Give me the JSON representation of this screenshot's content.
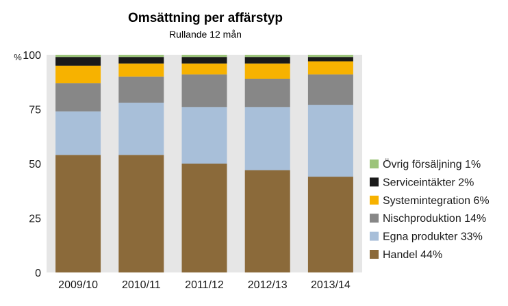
{
  "chart_data": {
    "type": "bar",
    "stacked": true,
    "title": "Omsättning per affärstyp",
    "subtitle": "Rullande 12 mån",
    "ylabel": "%",
    "ylim": [
      0,
      100
    ],
    "yticks": [
      0,
      25,
      50,
      75,
      100
    ],
    "categories": [
      "2009/10",
      "2010/11",
      "2011/12",
      "2012/13",
      "2013/14"
    ],
    "series": [
      {
        "name": "Handel",
        "legend": "Handel 44%",
        "color": "#8b6a3a",
        "values": [
          54,
          54,
          50,
          47,
          44
        ]
      },
      {
        "name": "Egna produkter",
        "legend": "Egna produkter 33%",
        "color": "#a8bfd9",
        "values": [
          20,
          24,
          26,
          29,
          33
        ]
      },
      {
        "name": "Nischproduktion",
        "legend": "Nischproduktion 14%",
        "color": "#878787",
        "values": [
          13,
          12,
          15,
          13,
          14
        ]
      },
      {
        "name": "Systemintegration",
        "legend": "Systemintegration 6%",
        "color": "#f7b200",
        "values": [
          8,
          6,
          5,
          7,
          6
        ]
      },
      {
        "name": "Serviceintäkter",
        "legend": "Serviceintäkter 2%",
        "color": "#1a1a1a",
        "values": [
          4,
          3,
          3,
          3,
          2
        ]
      },
      {
        "name": "Övrig försäljning",
        "legend": "Övrig försäljning 1%",
        "color": "#9cc47a",
        "values": [
          1,
          1,
          1,
          1,
          1
        ]
      }
    ],
    "legend_position": "right",
    "grid": false
  }
}
